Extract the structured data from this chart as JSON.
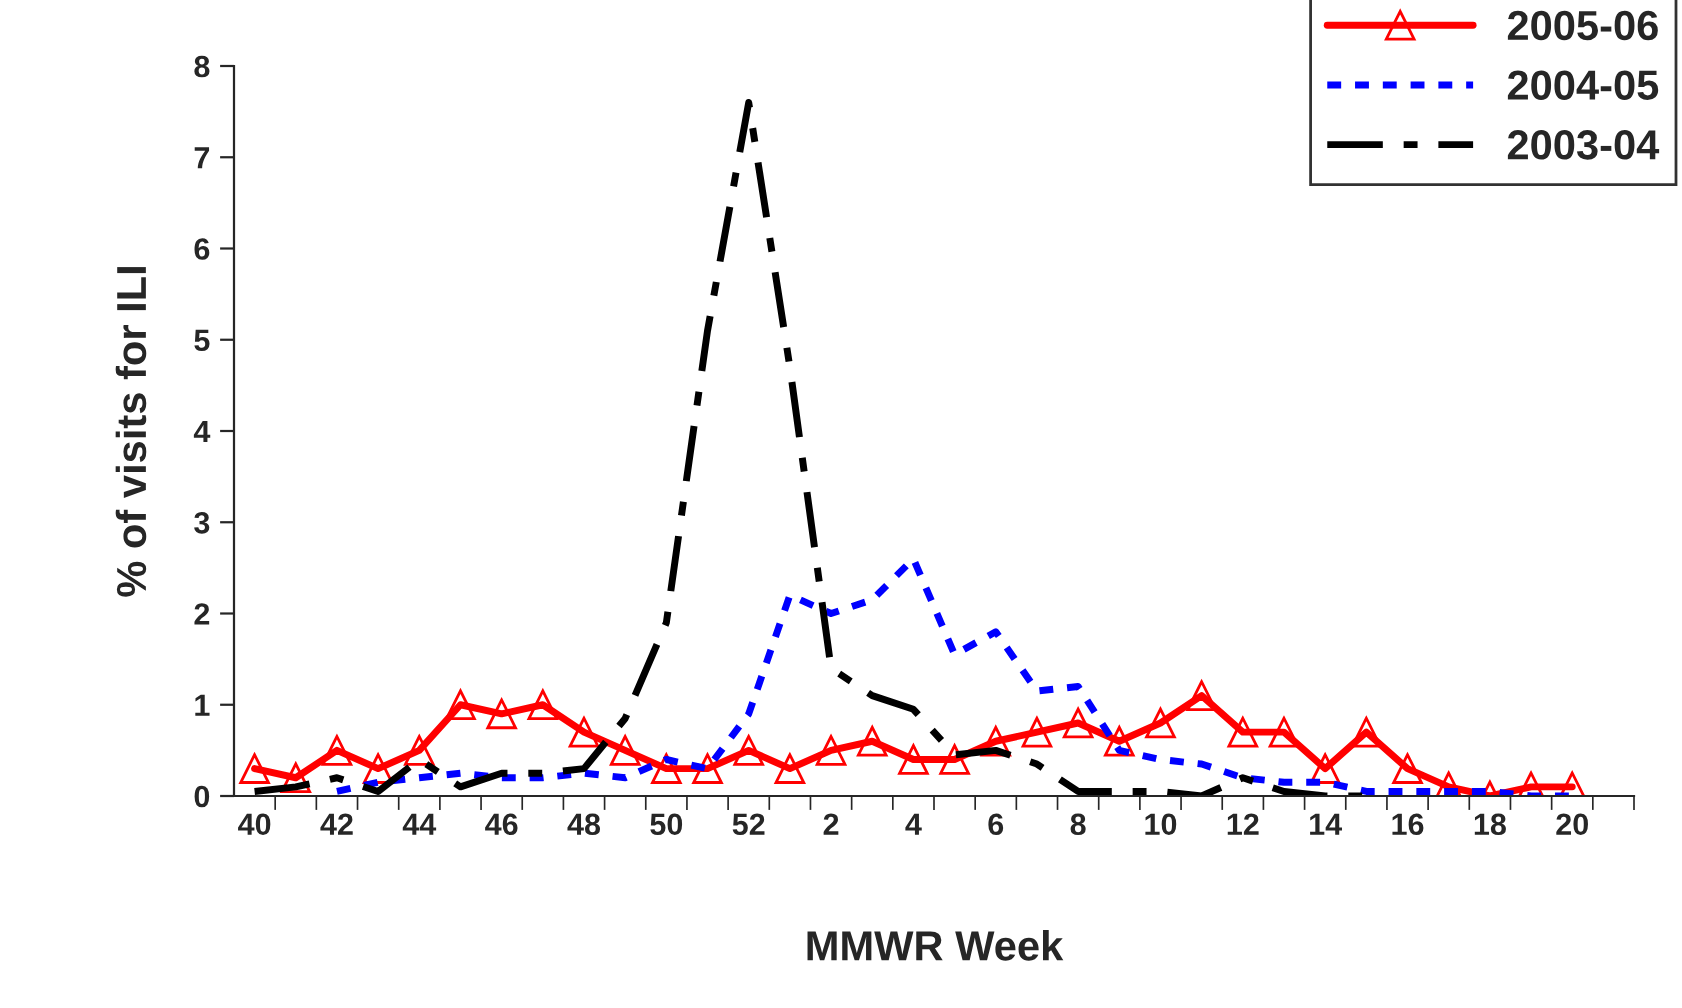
{
  "chart_data": {
    "type": "line",
    "xlabel": "MMWR Week",
    "ylabel": "% of visits for ILI",
    "categories": [
      "40",
      null,
      "42",
      null,
      "44",
      null,
      "46",
      null,
      "48",
      null,
      "50",
      null,
      "52",
      null,
      "2",
      null,
      "4",
      null,
      "6",
      null,
      "8",
      null,
      "10",
      null,
      "12",
      null,
      "14",
      null,
      "16",
      null,
      "18",
      null,
      "20",
      null
    ],
    "ylim": [
      0,
      8
    ],
    "yticks": [
      0,
      1,
      2,
      3,
      4,
      5,
      6,
      7,
      8
    ],
    "grid": false,
    "legend": "top right",
    "series": [
      {
        "name": "2005-06",
        "color": "#ff0000",
        "marker": "triangle",
        "line_style": "solid",
        "values": [
          0.3,
          0.2,
          0.5,
          0.3,
          0.5,
          1.0,
          0.9,
          1.0,
          0.7,
          0.5,
          0.3,
          0.3,
          0.5,
          0.3,
          0.5,
          0.6,
          0.4,
          0.4,
          0.6,
          0.7,
          0.8,
          0.6,
          0.8,
          1.1,
          0.7,
          0.7,
          0.3,
          0.7,
          0.3,
          0.1,
          0.0,
          0.1,
          0.1,
          null
        ]
      },
      {
        "name": "2004-05",
        "color": "#0000ff",
        "marker": "none",
        "line_style": "dotted",
        "values": [
          null,
          null,
          0.05,
          0.15,
          0.2,
          0.25,
          0.2,
          0.2,
          0.25,
          0.2,
          0.4,
          0.3,
          0.9,
          2.2,
          2.0,
          2.15,
          2.6,
          1.55,
          1.8,
          1.15,
          1.2,
          0.5,
          0.4,
          0.35,
          0.2,
          0.15,
          0.15,
          0.05,
          0.05,
          0.05,
          0.05,
          0.0,
          0.0,
          null
        ]
      },
      {
        "name": "2003-04",
        "color": "#000000",
        "marker": "none",
        "line_style": "dashdot",
        "values": [
          0.05,
          0.1,
          0.2,
          0.05,
          0.4,
          0.1,
          0.25,
          0.25,
          0.3,
          0.85,
          1.9,
          5.1,
          7.6,
          4.7,
          1.4,
          1.1,
          0.95,
          0.45,
          0.5,
          0.35,
          0.05,
          0.05,
          0.05,
          0.0,
          0.2,
          0.05,
          0.0,
          0.0,
          null,
          null,
          null,
          null,
          null,
          null
        ]
      }
    ]
  }
}
